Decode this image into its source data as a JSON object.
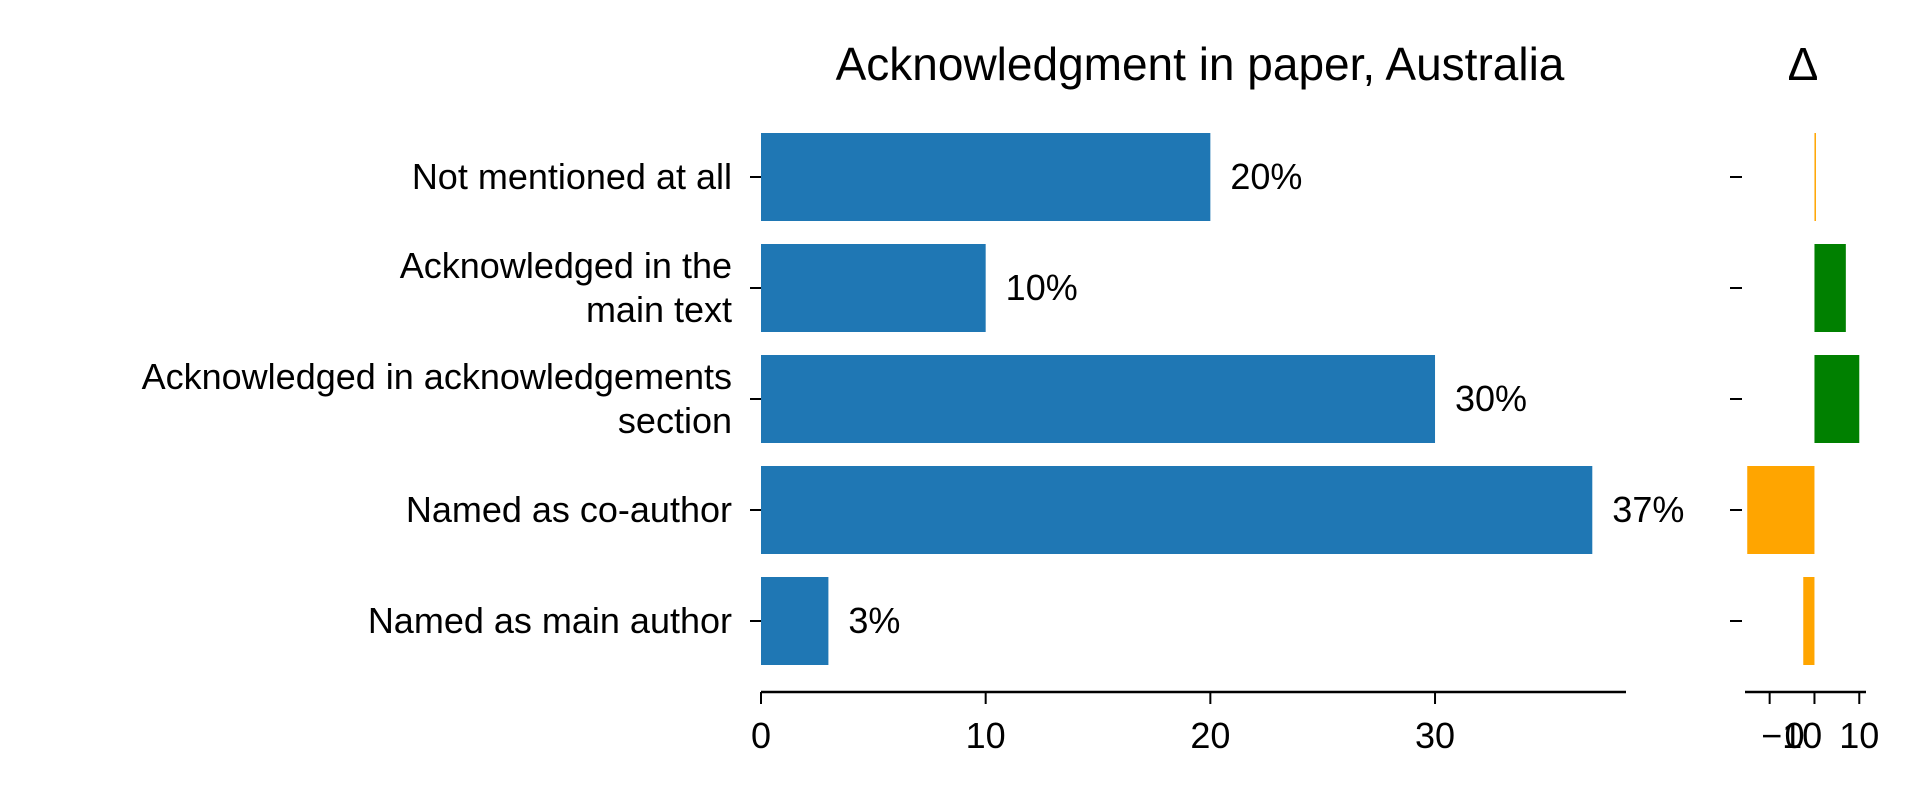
{
  "chart_data": [
    {
      "type": "bar",
      "orientation": "horizontal",
      "title": "Acknowledgment in paper, Australia",
      "categories": [
        [
          "Not mentioned at all"
        ],
        [
          "Acknowledged in the",
          "main text"
        ],
        [
          "Acknowledged in acknowledgements",
          "section"
        ],
        [
          "Named as co-author"
        ],
        [
          "Named as main author"
        ]
      ],
      "values": [
        20,
        10,
        30,
        37,
        3
      ],
      "value_labels": [
        "20%",
        "10%",
        "30%",
        "37%",
        "3%"
      ],
      "xlim": [
        0,
        38.5
      ],
      "xticks": [
        0,
        10,
        20,
        30
      ],
      "xtick_labels": [
        "0",
        "10",
        "20",
        "30"
      ],
      "color": "#1f77b4"
    },
    {
      "type": "bar",
      "orientation": "horizontal",
      "title": "Δ",
      "values": [
        0,
        7,
        10,
        -15,
        -2.5
      ],
      "xlim": [
        -15.5,
        11.5
      ],
      "xticks": [
        -10,
        0,
        10
      ],
      "xtick_labels": [
        "−10",
        "0",
        "10"
      ],
      "positive_color": "#008000",
      "negative_color": "#ffa500"
    }
  ]
}
